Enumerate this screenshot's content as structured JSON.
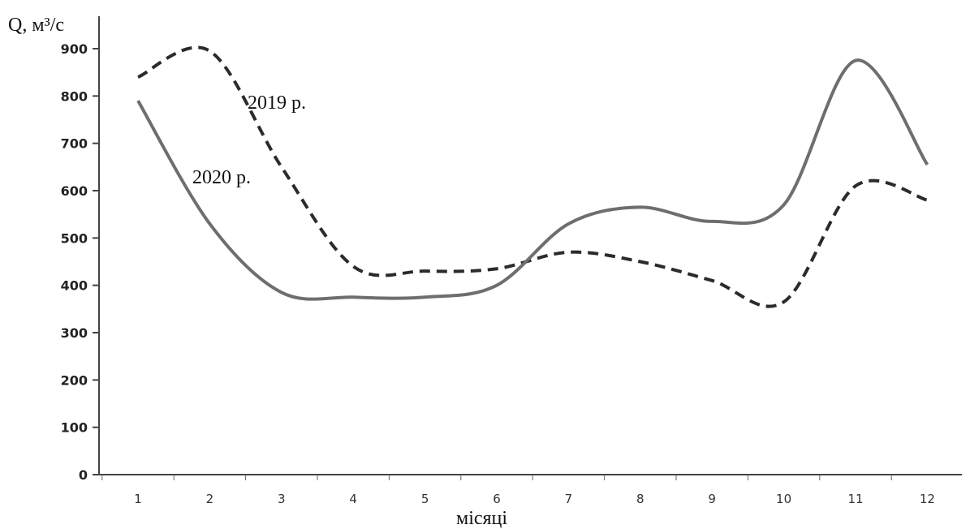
{
  "chart_data": {
    "type": "line",
    "ylabel": "Q, м³/с",
    "xlabel": "місяці",
    "categories": [
      "1",
      "2",
      "3",
      "4",
      "5",
      "6",
      "7",
      "8",
      "9",
      "10",
      "11",
      "12"
    ],
    "x": [
      1,
      2,
      3,
      4,
      5,
      6,
      7,
      8,
      9,
      10,
      11,
      12
    ],
    "yticks": [
      "0",
      "100",
      "200",
      "300",
      "400",
      "500",
      "600",
      "700",
      "800",
      "900"
    ],
    "ylim": [
      0,
      900
    ],
    "series": [
      {
        "name": "2019 р.",
        "style": "dashed",
        "color": "#2b2b2b",
        "values": [
          840,
          895,
          650,
          440,
          430,
          435,
          470,
          450,
          410,
          365,
          610,
          580
        ]
      },
      {
        "name": "2020 р.",
        "style": "solid",
        "color": "#6e6e6e",
        "values": [
          790,
          530,
          385,
          375,
          375,
          400,
          530,
          565,
          535,
          570,
          875,
          655
        ]
      }
    ],
    "grid": false,
    "legend": "inline labels near curves"
  }
}
